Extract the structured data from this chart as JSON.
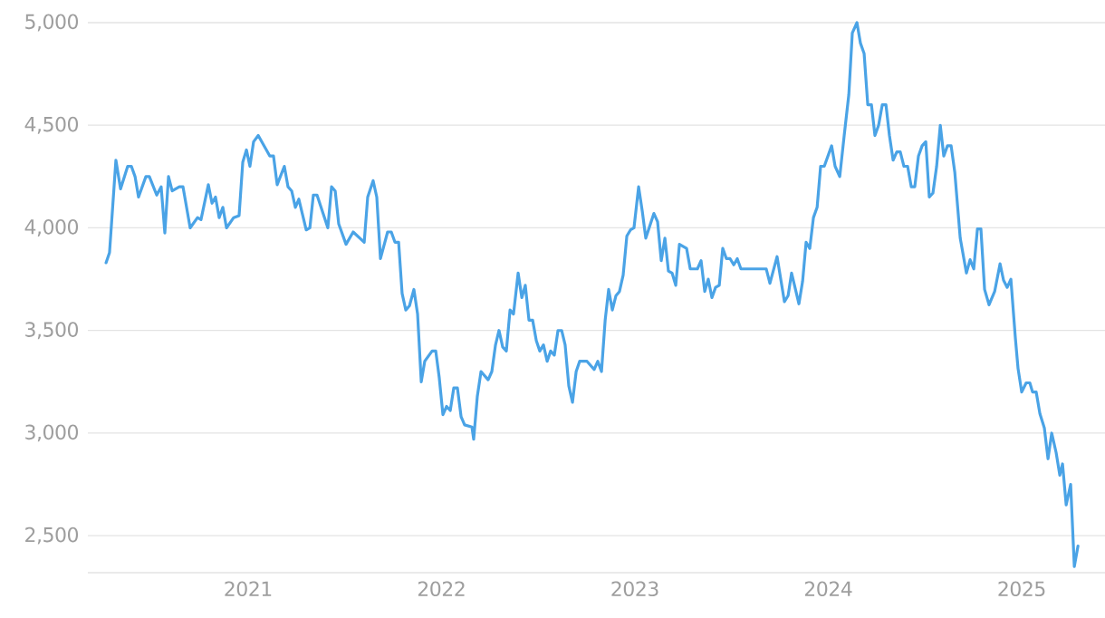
{
  "chart_data": {
    "type": "line",
    "xlim": [
      2020.171,
      2025.431
    ],
    "ylim": [
      2320,
      5000
    ],
    "xticks": [
      2021,
      2022,
      2023,
      2024,
      2025
    ],
    "yticks": [
      {
        "value": 2500,
        "label": "2,500"
      },
      {
        "value": 3000,
        "label": "3,000"
      },
      {
        "value": 3500,
        "label": "3,500"
      },
      {
        "value": 4000,
        "label": "4,000"
      },
      {
        "value": 4500,
        "label": "4,500"
      },
      {
        "value": 5000,
        "label": "5,000"
      }
    ],
    "grid": "y",
    "x": [
      2020.265,
      2020.283,
      2020.316,
      2020.34,
      2020.377,
      2020.396,
      2020.415,
      2020.433,
      2020.471,
      2020.489,
      2020.527,
      2020.55,
      2020.569,
      2020.588,
      2020.607,
      2020.644,
      2020.663,
      2020.7,
      2020.738,
      2020.756,
      2020.794,
      2020.813,
      2020.831,
      2020.85,
      2020.869,
      2020.888,
      2020.925,
      2020.953,
      2020.972,
      2020.991,
      2021.009,
      2021.028,
      2021.052,
      2021.112,
      2021.131,
      2021.15,
      2021.187,
      2021.206,
      2021.225,
      2021.244,
      2021.262,
      2021.3,
      2021.319,
      2021.337,
      2021.356,
      2021.412,
      2021.431,
      2021.45,
      2021.468,
      2021.506,
      2021.543,
      2021.6,
      2021.618,
      2021.646,
      2021.665,
      2021.684,
      2021.721,
      2021.74,
      2021.759,
      2021.778,
      2021.796,
      2021.815,
      2021.834,
      2021.857,
      2021.876,
      2021.895,
      2021.913,
      2021.951,
      2021.97,
      2021.988,
      2022.007,
      2022.026,
      2022.045,
      2022.063,
      2022.082,
      2022.101,
      2022.119,
      2022.157,
      2022.166,
      2022.185,
      2022.204,
      2022.241,
      2022.26,
      2022.279,
      2022.297,
      2022.316,
      2022.335,
      2022.354,
      2022.372,
      2022.396,
      2022.415,
      2022.433,
      2022.452,
      2022.471,
      2022.49,
      2022.508,
      2022.527,
      2022.546,
      2022.564,
      2022.583,
      2022.602,
      2022.621,
      2022.639,
      2022.658,
      2022.677,
      2022.696,
      2022.714,
      2022.752,
      2022.789,
      2022.808,
      2022.827,
      2022.846,
      2022.864,
      2022.883,
      2022.902,
      2022.92,
      2022.939,
      2022.958,
      2022.977,
      2022.995,
      2023.019,
      2023.038,
      2023.056,
      2023.098,
      2023.117,
      2023.136,
      2023.155,
      2023.173,
      2023.192,
      2023.211,
      2023.23,
      2023.267,
      2023.286,
      2023.323,
      2023.342,
      2023.361,
      2023.379,
      2023.398,
      2023.417,
      2023.436,
      2023.454,
      2023.473,
      2023.492,
      2023.511,
      2023.529,
      2023.548,
      2023.679,
      2023.698,
      2023.735,
      2023.773,
      2023.792,
      2023.81,
      2023.848,
      2023.867,
      2023.885,
      2023.904,
      2023.923,
      2023.942,
      2023.96,
      2023.979,
      2024.017,
      2024.035,
      2024.059,
      2024.082,
      2024.106,
      2024.124,
      2024.148,
      2024.166,
      2024.185,
      2024.204,
      2024.223,
      2024.241,
      2024.26,
      2024.279,
      2024.298,
      2024.316,
      2024.335,
      2024.354,
      2024.372,
      2024.391,
      2024.41,
      2024.429,
      2024.447,
      2024.466,
      2024.485,
      2024.504,
      2024.522,
      2024.541,
      2024.56,
      2024.579,
      2024.597,
      2024.616,
      2024.635,
      2024.654,
      2024.682,
      2024.714,
      2024.733,
      2024.752,
      2024.771,
      2024.789,
      2024.808,
      2024.831,
      2024.86,
      2024.888,
      2024.906,
      2024.925,
      2024.944,
      2024.967,
      2024.981,
      2025.0,
      2025.023,
      2025.042,
      2025.056,
      2025.075,
      2025.094,
      2025.117,
      2025.136,
      2025.155,
      2025.178,
      2025.197,
      2025.211,
      2025.23,
      2025.253,
      2025.272,
      2025.291
    ],
    "series": [
      {
        "color": "#4aa3e6",
        "values": [
          3830,
          3880,
          4330,
          4190,
          4300,
          4300,
          4250,
          4150,
          4250,
          4250,
          4160,
          4200,
          3975,
          4250,
          4180,
          4200,
          4200,
          4000,
          4050,
          4040,
          4210,
          4120,
          4150,
          4050,
          4100,
          4000,
          4050,
          4060,
          4320,
          4380,
          4300,
          4420,
          4450,
          4350,
          4350,
          4210,
          4300,
          4200,
          4180,
          4100,
          4140,
          3990,
          4000,
          4160,
          4160,
          4000,
          4200,
          4180,
          4020,
          3920,
          3980,
          3930,
          4150,
          4230,
          4150,
          3850,
          3980,
          3980,
          3930,
          3930,
          3680,
          3600,
          3620,
          3700,
          3580,
          3250,
          3350,
          3400,
          3400,
          3270,
          3090,
          3130,
          3110,
          3220,
          3220,
          3080,
          3040,
          3030,
          2970,
          3180,
          3300,
          3260,
          3300,
          3430,
          3500,
          3420,
          3400,
          3600,
          3580,
          3780,
          3660,
          3720,
          3550,
          3550,
          3450,
          3400,
          3430,
          3350,
          3400,
          3380,
          3500,
          3500,
          3430,
          3230,
          3150,
          3300,
          3350,
          3350,
          3310,
          3350,
          3300,
          3550,
          3700,
          3600,
          3670,
          3690,
          3770,
          3960,
          3990,
          4000,
          4200,
          4080,
          3950,
          4070,
          4030,
          3840,
          3950,
          3790,
          3780,
          3720,
          3920,
          3900,
          3800,
          3800,
          3840,
          3690,
          3750,
          3660,
          3710,
          3720,
          3900,
          3850,
          3850,
          3820,
          3850,
          3800,
          3800,
          3730,
          3860,
          3640,
          3670,
          3780,
          3630,
          3740,
          3930,
          3900,
          4050,
          4100,
          4300,
          4300,
          4400,
          4300,
          4250,
          4450,
          4650,
          4950,
          5000,
          4900,
          4850,
          4600,
          4600,
          4450,
          4500,
          4600,
          4600,
          4450,
          4330,
          4370,
          4370,
          4300,
          4300,
          4200,
          4200,
          4350,
          4400,
          4420,
          4150,
          4170,
          4300,
          4500,
          4350,
          4400,
          4400,
          4270,
          3950,
          3780,
          3845,
          3800,
          3995,
          3995,
          3700,
          3625,
          3690,
          3825,
          3745,
          3710,
          3750,
          3465,
          3315,
          3200,
          3245,
          3245,
          3200,
          3200,
          3095,
          3025,
          2875,
          3000,
          2905,
          2795,
          2850,
          2650,
          2750,
          2350,
          2450
        ]
      }
    ]
  }
}
